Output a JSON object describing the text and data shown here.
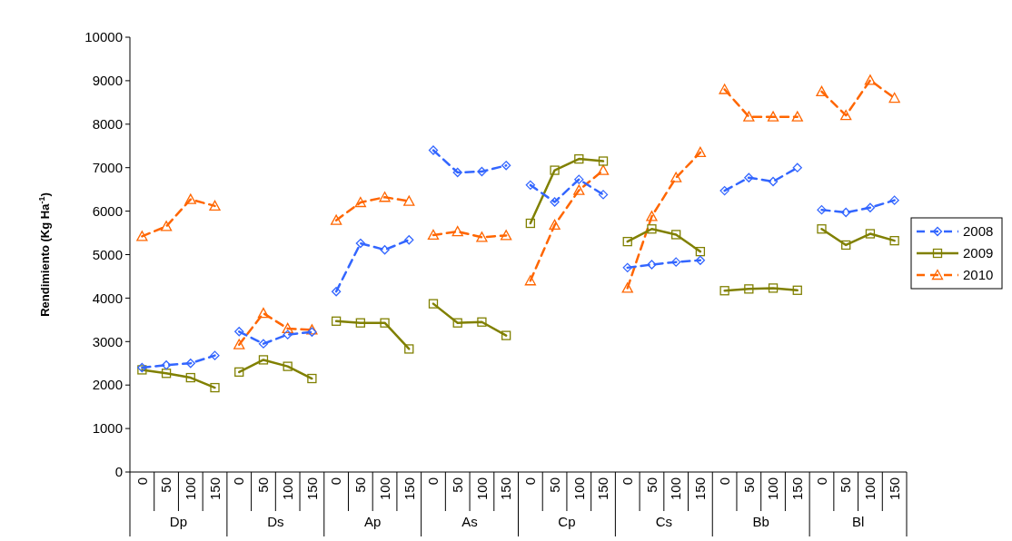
{
  "chart_data": {
    "type": "line",
    "ylabel": "Rendimiento (Kg Ha$^{-1}$)",
    "categories": [
      "0",
      "50",
      "100",
      "150",
      "0",
      "50",
      "100",
      "150",
      "0",
      "50",
      "100",
      "150",
      "0",
      "50",
      "100",
      "150",
      "0",
      "50",
      "100",
      "150",
      "0",
      "50",
      "100",
      "150",
      "0",
      "50",
      "100",
      "150",
      "0",
      "50",
      "100",
      "150"
    ],
    "annotations": [
      "Dp",
      "Ds",
      "Ap",
      "As",
      "Cp",
      "Cs",
      "Bb",
      "Bl"
    ],
    "ylim": [
      0,
      10000
    ],
    "yticks": [
      0,
      1000,
      2000,
      3000,
      4000,
      5000,
      6000,
      7000,
      8000,
      9000,
      10000
    ],
    "grid": false,
    "legend": "right",
    "series": [
      {
        "name": "2008",
        "color": "#3366ff",
        "marker": "diamond",
        "line_style": "dashed",
        "values": [
          2400,
          2460,
          2500,
          2680,
          null,
          null,
          null,
          null,
          null,
          null,
          null,
          null,
          null,
          null,
          null,
          null,
          null,
          null,
          null,
          null,
          null,
          null,
          null,
          null,
          null,
          null,
          null,
          null,
          null,
          null,
          null,
          null
        ]
      },
      {
        "color": "#3366ff",
        "marker": "diamond",
        "line_style": "dashed",
        "values": [
          null,
          null,
          null,
          null,
          3230,
          2950,
          3160,
          3220,
          null,
          null,
          null,
          null,
          null,
          null,
          null,
          null,
          null,
          null,
          null,
          null,
          null,
          null,
          null,
          null,
          null,
          null,
          null,
          null,
          null,
          null,
          null,
          null
        ]
      },
      {
        "color": "#3366ff",
        "marker": "diamond",
        "line_style": "dashed",
        "values": [
          null,
          null,
          null,
          null,
          null,
          null,
          null,
          null,
          4150,
          5260,
          5110,
          5340,
          null,
          null,
          null,
          null,
          null,
          null,
          null,
          null,
          null,
          null,
          null,
          null,
          null,
          null,
          null,
          null,
          null,
          null,
          null,
          null
        ]
      },
      {
        "color": "#3366ff",
        "marker": "diamond",
        "line_style": "dashed",
        "values": [
          null,
          null,
          null,
          null,
          null,
          null,
          null,
          null,
          null,
          null,
          null,
          null,
          7400,
          6890,
          6910,
          7050,
          null,
          null,
          null,
          null,
          null,
          null,
          null,
          null,
          null,
          null,
          null,
          null,
          null,
          null,
          null,
          null
        ]
      },
      {
        "color": "#3366ff",
        "marker": "diamond",
        "line_style": "dashed",
        "values": [
          null,
          null,
          null,
          null,
          null,
          null,
          null,
          null,
          null,
          null,
          null,
          null,
          null,
          null,
          null,
          null,
          6600,
          6210,
          6730,
          6380,
          null,
          null,
          null,
          null,
          null,
          null,
          null,
          null,
          null,
          null,
          null,
          null
        ]
      },
      {
        "color": "#3366ff",
        "marker": "diamond",
        "line_style": "dashed",
        "values": [
          null,
          null,
          null,
          null,
          null,
          null,
          null,
          null,
          null,
          null,
          null,
          null,
          null,
          null,
          null,
          null,
          null,
          null,
          null,
          null,
          4700,
          4770,
          4830,
          4870,
          null,
          null,
          null,
          null,
          null,
          null,
          null,
          null
        ]
      },
      {
        "color": "#3366ff",
        "marker": "diamond",
        "line_style": "dashed",
        "values": [
          null,
          null,
          null,
          null,
          null,
          null,
          null,
          null,
          null,
          null,
          null,
          null,
          null,
          null,
          null,
          null,
          null,
          null,
          null,
          null,
          null,
          null,
          null,
          null,
          6470,
          6770,
          6680,
          7000,
          null,
          null,
          null,
          null
        ]
      },
      {
        "color": "#3366ff",
        "marker": "diamond",
        "line_style": "dashed",
        "values": [
          null,
          null,
          null,
          null,
          null,
          null,
          null,
          null,
          null,
          null,
          null,
          null,
          null,
          null,
          null,
          null,
          null,
          null,
          null,
          null,
          null,
          null,
          null,
          null,
          null,
          null,
          null,
          null,
          6030,
          5970,
          6080,
          6250
        ]
      },
      {
        "name": "2009",
        "color": "#808000",
        "marker": "square",
        "line_style": "solid",
        "values": [
          2350,
          2270,
          2170,
          1940,
          null,
          null,
          null,
          null,
          null,
          null,
          null,
          null,
          null,
          null,
          null,
          null,
          null,
          null,
          null,
          null,
          null,
          null,
          null,
          null,
          null,
          null,
          null,
          null,
          null,
          null,
          null,
          null
        ]
      },
      {
        "color": "#808000",
        "marker": "square",
        "line_style": "solid",
        "values": [
          null,
          null,
          null,
          null,
          2300,
          2580,
          2430,
          2150,
          null,
          null,
          null,
          null,
          null,
          null,
          null,
          null,
          null,
          null,
          null,
          null,
          null,
          null,
          null,
          null,
          null,
          null,
          null,
          null,
          null,
          null,
          null,
          null
        ]
      },
      {
        "color": "#808000",
        "marker": "square",
        "line_style": "solid",
        "values": [
          null,
          null,
          null,
          null,
          null,
          null,
          null,
          null,
          3470,
          3430,
          3430,
          2830,
          null,
          null,
          null,
          null,
          null,
          null,
          null,
          null,
          null,
          null,
          null,
          null,
          null,
          null,
          null,
          null,
          null,
          null,
          null,
          null
        ]
      },
      {
        "color": "#808000",
        "marker": "square",
        "line_style": "solid",
        "values": [
          null,
          null,
          null,
          null,
          null,
          null,
          null,
          null,
          null,
          null,
          null,
          null,
          3870,
          3430,
          3450,
          3140,
          null,
          null,
          null,
          null,
          null,
          null,
          null,
          null,
          null,
          null,
          null,
          null,
          null,
          null,
          null,
          null
        ]
      },
      {
        "color": "#808000",
        "marker": "square",
        "line_style": "solid",
        "values": [
          null,
          null,
          null,
          null,
          null,
          null,
          null,
          null,
          null,
          null,
          null,
          null,
          null,
          null,
          null,
          null,
          5720,
          6940,
          7200,
          7150,
          null,
          null,
          null,
          null,
          null,
          null,
          null,
          null,
          null,
          null,
          null,
          null
        ]
      },
      {
        "color": "#808000",
        "marker": "square",
        "line_style": "solid",
        "values": [
          null,
          null,
          null,
          null,
          null,
          null,
          null,
          null,
          null,
          null,
          null,
          null,
          null,
          null,
          null,
          null,
          null,
          null,
          null,
          null,
          5300,
          5590,
          5460,
          5070,
          null,
          null,
          null,
          null,
          null,
          null,
          null,
          null
        ]
      },
      {
        "color": "#808000",
        "marker": "square",
        "line_style": "solid",
        "values": [
          null,
          null,
          null,
          null,
          null,
          null,
          null,
          null,
          null,
          null,
          null,
          null,
          null,
          null,
          null,
          null,
          null,
          null,
          null,
          null,
          null,
          null,
          null,
          null,
          4170,
          4210,
          4230,
          4180,
          null,
          null,
          null,
          null
        ]
      },
      {
        "color": "#808000",
        "marker": "square",
        "line_style": "solid",
        "values": [
          null,
          null,
          null,
          null,
          null,
          null,
          null,
          null,
          null,
          null,
          null,
          null,
          null,
          null,
          null,
          null,
          null,
          null,
          null,
          null,
          null,
          null,
          null,
          null,
          null,
          null,
          null,
          null,
          5590,
          5220,
          5480,
          5320
        ]
      },
      {
        "name": "2010",
        "color": "#ff6600",
        "marker": "triangle",
        "line_style": "dashed",
        "values": [
          5420,
          5650,
          6270,
          6120,
          null,
          null,
          null,
          null,
          null,
          null,
          null,
          null,
          null,
          null,
          null,
          null,
          null,
          null,
          null,
          null,
          null,
          null,
          null,
          null,
          null,
          null,
          null,
          null,
          null,
          null,
          null,
          null
        ]
      },
      {
        "color": "#ff6600",
        "marker": "triangle",
        "line_style": "dashed",
        "values": [
          null,
          null,
          null,
          null,
          2930,
          3650,
          3300,
          3270,
          null,
          null,
          null,
          null,
          null,
          null,
          null,
          null,
          null,
          null,
          null,
          null,
          null,
          null,
          null,
          null,
          null,
          null,
          null,
          null,
          null,
          null,
          null,
          null
        ]
      },
      {
        "color": "#ff6600",
        "marker": "triangle",
        "line_style": "dashed",
        "values": [
          null,
          null,
          null,
          null,
          null,
          null,
          null,
          null,
          5790,
          6200,
          6320,
          6230,
          null,
          null,
          null,
          null,
          null,
          null,
          null,
          null,
          null,
          null,
          null,
          null,
          null,
          null,
          null,
          null,
          null,
          null,
          null,
          null
        ]
      },
      {
        "color": "#ff6600",
        "marker": "triangle",
        "line_style": "dashed",
        "values": [
          null,
          null,
          null,
          null,
          null,
          null,
          null,
          null,
          null,
          null,
          null,
          null,
          5450,
          5530,
          5400,
          5440,
          null,
          null,
          null,
          null,
          null,
          null,
          null,
          null,
          null,
          null,
          null,
          null,
          null,
          null,
          null,
          null
        ]
      },
      {
        "color": "#ff6600",
        "marker": "triangle",
        "line_style": "dashed",
        "values": [
          null,
          null,
          null,
          null,
          null,
          null,
          null,
          null,
          null,
          null,
          null,
          null,
          null,
          null,
          null,
          null,
          4400,
          5680,
          6480,
          6940,
          null,
          null,
          null,
          null,
          null,
          null,
          null,
          null,
          null,
          null,
          null,
          null
        ]
      },
      {
        "color": "#ff6600",
        "marker": "triangle",
        "line_style": "dashed",
        "values": [
          null,
          null,
          null,
          null,
          null,
          null,
          null,
          null,
          null,
          null,
          null,
          null,
          null,
          null,
          null,
          null,
          null,
          null,
          null,
          null,
          4230,
          5880,
          6770,
          7350,
          null,
          null,
          null,
          null,
          null,
          null,
          null,
          null
        ]
      },
      {
        "color": "#ff6600",
        "marker": "triangle",
        "line_style": "dashed",
        "values": [
          null,
          null,
          null,
          null,
          null,
          null,
          null,
          null,
          null,
          null,
          null,
          null,
          null,
          null,
          null,
          null,
          null,
          null,
          null,
          null,
          null,
          null,
          null,
          null,
          8800,
          8170,
          8170,
          8170,
          null,
          null,
          null,
          null
        ]
      },
      {
        "color": "#ff6600",
        "marker": "triangle",
        "line_style": "dashed",
        "values": [
          null,
          null,
          null,
          null,
          null,
          null,
          null,
          null,
          null,
          null,
          null,
          null,
          null,
          null,
          null,
          null,
          null,
          null,
          null,
          null,
          null,
          null,
          null,
          null,
          null,
          null,
          null,
          null,
          8750,
          8200,
          9010,
          8600
        ]
      }
    ]
  }
}
